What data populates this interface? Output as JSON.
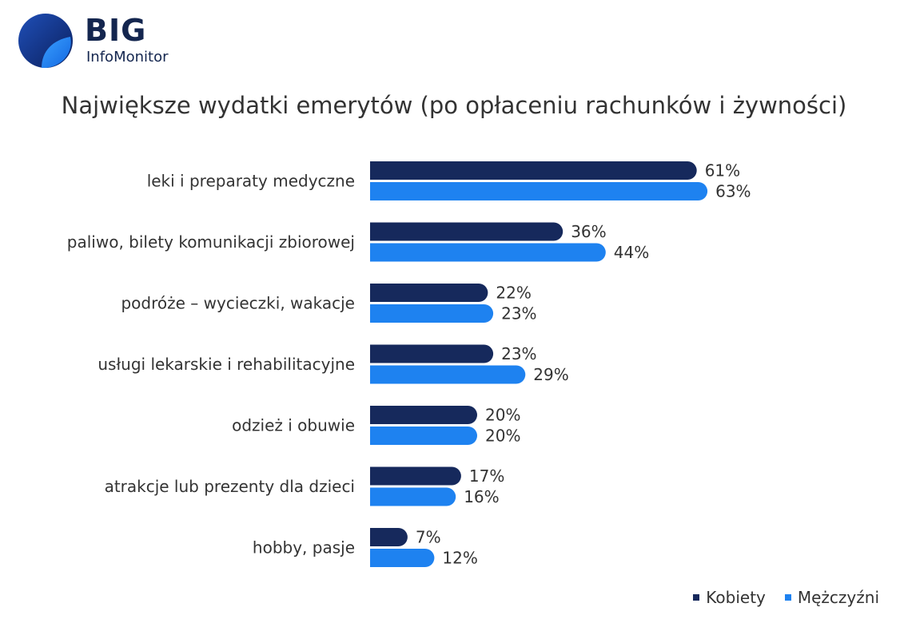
{
  "logo": {
    "name": "BIG",
    "subtitle": "InfoMonitor"
  },
  "colors": {
    "kobiety": "#16295c",
    "mezczyzni": "#1e82f0",
    "text": "#333333"
  },
  "chart_data": {
    "type": "bar",
    "orientation": "horizontal",
    "title": "Największe wydatki emerytów (po opłaceniu rachunków i żywności)",
    "categories": [
      "leki i preparaty medyczne",
      "paliwo, bilety komunikacji zbiorowej",
      "podróże – wycieczki, wakacje",
      "usługi lekarskie i rehabilitacyjne",
      "odzież i obuwie",
      "atrakcje lub prezenty dla dzieci",
      "hobby, pasje"
    ],
    "series": [
      {
        "name": "Kobiety",
        "values": [
          61,
          36,
          22,
          23,
          20,
          17,
          7
        ],
        "labels": [
          "61%",
          "36%",
          "22%",
          "23%",
          "20%",
          "17%",
          "7%"
        ]
      },
      {
        "name": "Mężczyźni",
        "values": [
          63,
          44,
          23,
          29,
          20,
          16,
          12
        ],
        "labels": [
          "63%",
          "44%",
          "23%",
          "29%",
          "20%",
          "16%",
          "12%"
        ]
      }
    ],
    "unit": "%",
    "xlim": [
      0,
      100
    ],
    "grid": false,
    "legend_position": "bottom-right"
  }
}
